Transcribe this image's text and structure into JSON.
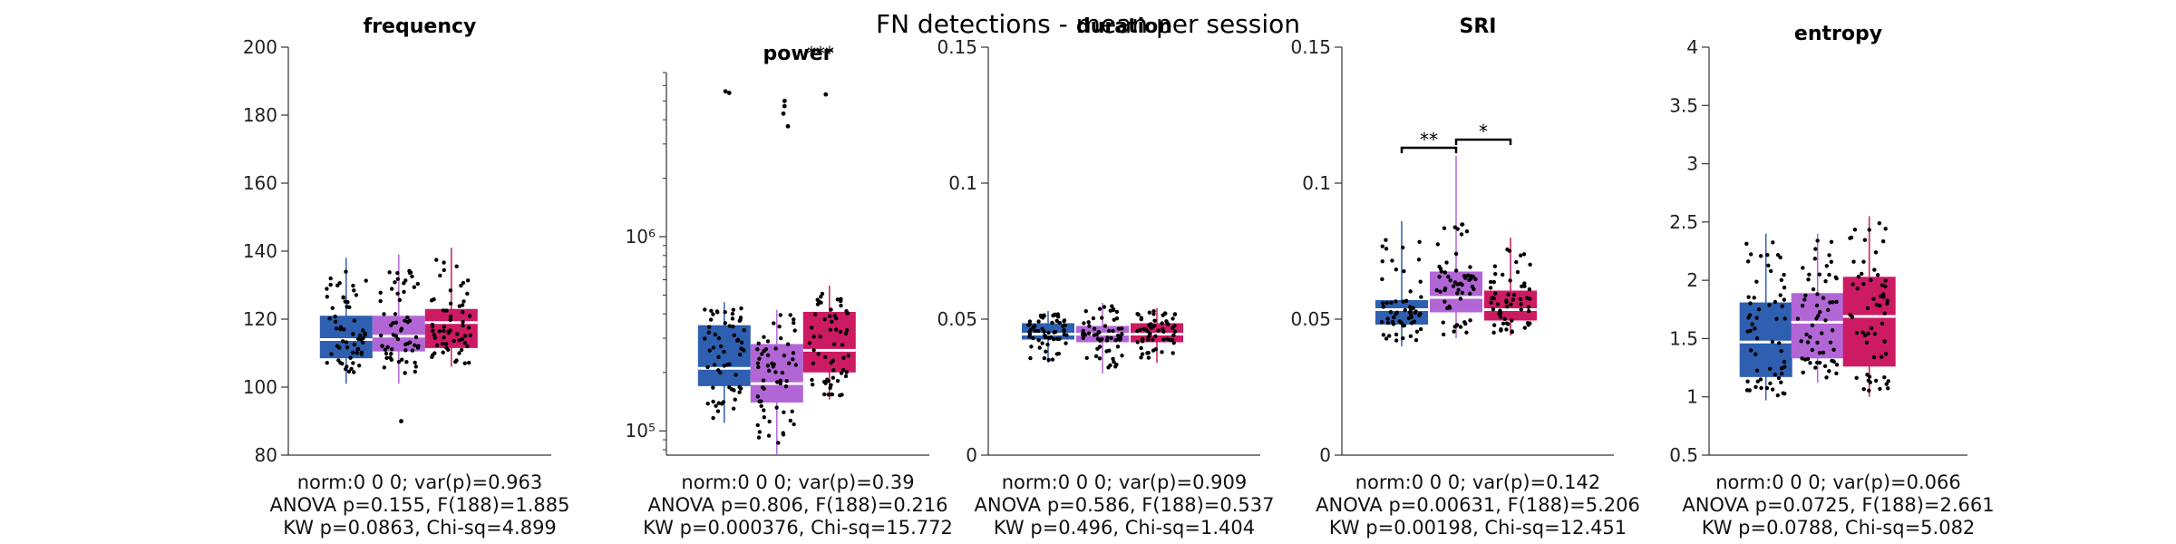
{
  "figure": {
    "title": "FN detections - mean per session"
  },
  "colors": {
    "group1": "#2e5fb0",
    "group2": "#b266d6",
    "group3": "#cc1a63",
    "median": "#ffffff",
    "point": "#000000"
  },
  "chart_data": [
    {
      "type": "box",
      "title": "frequency",
      "scale": "linear",
      "ylim": [
        80,
        200
      ],
      "yticks": [
        80,
        100,
        120,
        140,
        160,
        180,
        200
      ],
      "ytick_labels": [
        "80",
        "100",
        "120",
        "140",
        "160",
        "180",
        "200"
      ],
      "groups": [
        {
          "q1": 108.5,
          "median": 114,
          "q3": 121,
          "whisker_low": 101,
          "whisker_high": 138,
          "outliers": [],
          "spread": [
            104,
            134
          ]
        },
        {
          "q1": 110.5,
          "median": 115,
          "q3": 121,
          "whisker_low": 101,
          "whisker_high": 139,
          "outliers": [
            90
          ],
          "spread": [
            104,
            137
          ]
        },
        {
          "q1": 111.5,
          "median": 119,
          "q3": 123,
          "whisker_low": 106,
          "whisker_high": 141,
          "outliers": [],
          "spread": [
            107,
            138
          ]
        }
      ],
      "stats": [
        "norm:0  0  0; var(p)=0.963",
        "ANOVA p=0.155, F(188)=1.885",
        "KW p=0.0863, Chi-sq=4.899"
      ]
    },
    {
      "type": "box",
      "title": "power",
      "scale": "log",
      "ylim": [
        75000,
        7000000
      ],
      "yticks": [
        100000,
        1000000
      ],
      "ytick_labels": [
        "10⁵",
        "10⁶"
      ],
      "groups": [
        {
          "q1": 170000,
          "median": 210000,
          "q3": 350000,
          "whisker_low": 110000,
          "whisker_high": 460000,
          "outliers": [
            5500000,
            5600000
          ],
          "spread": [
            115000,
            430000
          ]
        },
        {
          "q1": 140000,
          "median": 175000,
          "q3": 280000,
          "whisker_low": 75000,
          "whisker_high": 420000,
          "outliers": [
            3700000,
            4300000,
            4700000,
            5000000
          ],
          "spread": [
            85000,
            400000
          ]
        },
        {
          "q1": 200000,
          "median": 260000,
          "q3": 410000,
          "whisker_low": 145000,
          "whisker_high": 560000,
          "outliers": [
            5400000
          ],
          "spread": [
            150000,
            520000
          ]
        }
      ],
      "significance": [
        {
          "from": 1,
          "to": 3,
          "label": "***"
        }
      ],
      "stats": [
        "norm:0  0  0; var(p)=0.39",
        "ANOVA p=0.806, F(188)=0.216",
        "KW p=0.000376, Chi-sq=15.772"
      ]
    },
    {
      "type": "box",
      "title": "duration",
      "scale": "linear",
      "ylim": [
        0,
        0.15
      ],
      "yticks": [
        0,
        0.05,
        0.1,
        0.15
      ],
      "ytick_labels": [
        "0",
        "0.05",
        "0.1",
        "0.15"
      ],
      "groups": [
        {
          "q1": 0.0425,
          "median": 0.0445,
          "q3": 0.0485,
          "whisker_low": 0.034,
          "whisker_high": 0.053,
          "outliers": [],
          "spread": [
            0.035,
            0.052
          ]
        },
        {
          "q1": 0.0415,
          "median": 0.0445,
          "q3": 0.0475,
          "whisker_low": 0.03,
          "whisker_high": 0.056,
          "outliers": [],
          "spread": [
            0.032,
            0.055
          ]
        },
        {
          "q1": 0.0415,
          "median": 0.0445,
          "q3": 0.0485,
          "whisker_low": 0.034,
          "whisker_high": 0.054,
          "outliers": [],
          "spread": [
            0.035,
            0.053
          ]
        }
      ],
      "stats": [
        "norm:0  0  0; var(p)=0.909",
        "ANOVA p=0.586, F(188)=0.537",
        "KW p=0.496, Chi-sq=1.404"
      ]
    },
    {
      "type": "box",
      "title": "SRI",
      "scale": "linear",
      "ylim": [
        0,
        0.15
      ],
      "yticks": [
        0,
        0.05,
        0.1,
        0.15
      ],
      "ytick_labels": [
        "0",
        "0.05",
        "0.1",
        "0.15"
      ],
      "groups": [
        {
          "q1": 0.048,
          "median": 0.0535,
          "q3": 0.057,
          "whisker_low": 0.04,
          "whisker_high": 0.086,
          "outliers": [],
          "spread": [
            0.042,
            0.08
          ]
        },
        {
          "q1": 0.0525,
          "median": 0.058,
          "q3": 0.0675,
          "whisker_low": 0.043,
          "whisker_high": 0.11,
          "outliers": [],
          "spread": [
            0.044,
            0.087
          ]
        },
        {
          "q1": 0.0495,
          "median": 0.0535,
          "q3": 0.0605,
          "whisker_low": 0.044,
          "whisker_high": 0.08,
          "outliers": [],
          "spread": [
            0.045,
            0.078
          ]
        }
      ],
      "significance": [
        {
          "from": 1,
          "to": 2,
          "label": "**",
          "y": 0.113
        },
        {
          "from": 2,
          "to": 3,
          "label": "*",
          "y": 0.116
        }
      ],
      "stats": [
        "norm:0  0  0; var(p)=0.142",
        "ANOVA p=0.00631, F(188)=5.206",
        "KW p=0.00198, Chi-sq=12.451"
      ]
    },
    {
      "type": "box",
      "title": "entropy",
      "scale": "linear",
      "ylim": [
        0.5,
        4
      ],
      "yticks": [
        0.5,
        1,
        1.5,
        2,
        2.5,
        3,
        3.5,
        4
      ],
      "ytick_labels": [
        "0.5",
        "1",
        "1.5",
        "2",
        "2.5",
        "3",
        "3.5",
        "4"
      ],
      "groups": [
        {
          "q1": 1.17,
          "median": 1.47,
          "q3": 1.81,
          "whisker_low": 0.97,
          "whisker_high": 2.4,
          "outliers": [],
          "spread": [
            1.0,
            2.35
          ]
        },
        {
          "q1": 1.33,
          "median": 1.64,
          "q3": 1.89,
          "whisker_low": 1.12,
          "whisker_high": 2.4,
          "outliers": [],
          "spread": [
            1.15,
            2.35
          ]
        },
        {
          "q1": 1.26,
          "median": 1.69,
          "q3": 2.03,
          "whisker_low": 1.0,
          "whisker_high": 2.55,
          "outliers": [],
          "spread": [
            1.03,
            2.5
          ]
        }
      ],
      "stats": [
        "norm:0  0  0; var(p)=0.066",
        "ANOVA p=0.0725, F(188)=2.661",
        "KW p=0.0788, Chi-sq=5.082"
      ]
    }
  ]
}
